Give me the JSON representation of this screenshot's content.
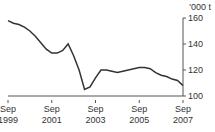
{
  "chart_data": {
    "type": "line",
    "y_label": "'000 t",
    "categories": [
      "Sep 1999",
      null,
      null,
      null,
      null,
      null,
      null,
      null,
      "Sep 2001",
      null,
      null,
      null,
      null,
      null,
      null,
      null,
      "Sep 2003",
      null,
      null,
      null,
      null,
      null,
      null,
      null,
      "Sep 2005",
      null,
      null,
      null,
      null,
      null,
      null,
      null,
      "Sep 2007"
    ],
    "values": [
      158,
      156,
      155,
      153,
      150,
      146,
      141,
      136,
      133,
      133,
      135,
      140,
      131,
      120,
      105,
      107,
      114,
      120,
      120,
      119,
      118,
      119,
      120,
      121,
      122,
      122,
      121,
      118,
      116,
      115,
      113,
      112,
      108
    ],
    "color": "#333333",
    "ylim": [
      100,
      160
    ],
    "yticks": [
      100,
      120,
      140,
      160
    ],
    "grid": false
  }
}
